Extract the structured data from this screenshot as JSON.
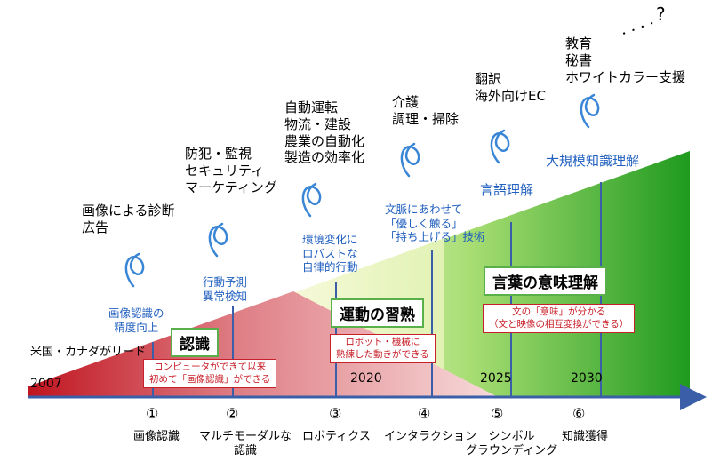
{
  "years": [
    "2007",
    "2020",
    "2025",
    "2030"
  ],
  "lead_label": "米国・カナダがリード",
  "question_mark": "?",
  "ellipsis": "・・・・",
  "phase_labels": {
    "recognition": "認識",
    "motion": "運動の習熟",
    "meaning": "言葉の意味理解"
  },
  "notes": {
    "recognition": "コンピュータができて以来\n初めて「画像認識」ができる",
    "motion": "ロボット・機械に\n熟練した動きができる",
    "meaning": "文の「意味」が分かる\n（文と映像の相互変換ができる）"
  },
  "milestones": [
    {
      "number": "①",
      "name": "画像認識",
      "capability": "画像認識の\n精度向上",
      "applications": "画像による診断\n広告"
    },
    {
      "number": "②",
      "name": "マルチモーダルな\n認識",
      "capability": "行動予測\n異常検知",
      "applications": "防犯・監視\nセキュリティ\nマーケティング"
    },
    {
      "number": "③",
      "name": "ロボティクス",
      "capability": "環境変化に\nロバストな\n自律的行動",
      "applications": "自動運転\n物流・建設\n農業の自動化\n製造の効率化"
    },
    {
      "number": "④",
      "name": "インタラクション",
      "capability": "文脈にあわせて\n「優しく触る」\n「持ち上げる」技術",
      "applications": "介護\n調理・掃除"
    },
    {
      "number": "⑤",
      "name": "シンボル\nグラウンディング",
      "capability": "言語理解",
      "applications": "翻訳\n海外向けEC"
    },
    {
      "number": "⑥",
      "name": "知識獲得",
      "capability": "大規模知識理解",
      "applications": "教育\n秘書\nホワイトカラー支援"
    }
  ],
  "colors": {
    "red_dark": "#c0151f",
    "red_light": "#f7dada",
    "green_dark": "#1f9a1f",
    "green_light": "#e6f5cc",
    "axis": "#3a5fa8",
    "text_blue": "#1f5fbf",
    "note_red": "#c8202a",
    "box_green": "#59b04a"
  }
}
